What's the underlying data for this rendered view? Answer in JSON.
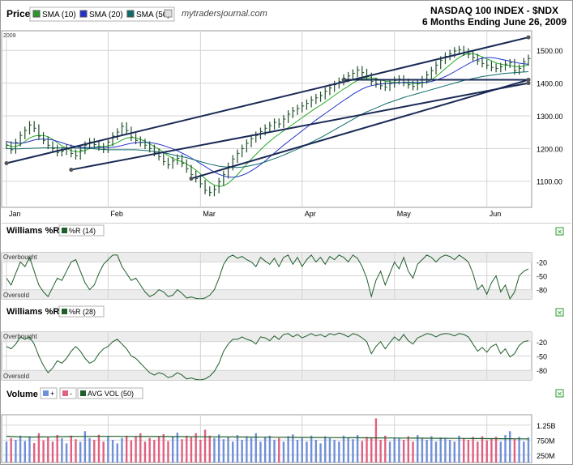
{
  "header": {
    "panel_label": "Price",
    "legend": [
      {
        "label": "SMA (10)",
        "color": "#22aa22"
      },
      {
        "label": "SMA (20)",
        "color": "#2233cc"
      },
      {
        "label": "SMA (50)",
        "color": "#0f6b6b"
      }
    ],
    "watermark": "mytradersjournal.com",
    "title_line1": "NASDAQ 100 INDEX - $NDX",
    "title_line2": "6 Months Ending June 26, 2009",
    "year_label": "2009"
  },
  "colors": {
    "bar": "#1f4f2a",
    "trendline": "#1a2a55",
    "grid": "#d4d4d4",
    "williams_line": "#1f5f2a",
    "volume_up": "#6f8fd8",
    "volume_down": "#e06080",
    "avg_vol": "#1f5f2a",
    "icon_green": "#2a9a2a"
  },
  "chart_data": [
    {
      "type": "line",
      "panel": "price",
      "x_labels": [
        "Jan",
        "Feb",
        "Mar",
        "Apr",
        "May",
        "Jun"
      ],
      "y_ticks": [
        "1500.00",
        "1400.00",
        "1300.00",
        "1200.00",
        "1100.00"
      ],
      "ylim": [
        1020,
        1560
      ],
      "close": [
        1210,
        1196,
        1218,
        1240,
        1255,
        1272,
        1262,
        1238,
        1225,
        1210,
        1200,
        1188,
        1192,
        1200,
        1185,
        1178,
        1195,
        1210,
        1220,
        1212,
        1205,
        1198,
        1220,
        1238,
        1250,
        1268,
        1255,
        1235,
        1225,
        1218,
        1210,
        1200,
        1188,
        1175,
        1160,
        1150,
        1162,
        1170,
        1155,
        1138,
        1120,
        1108,
        1092,
        1072,
        1066,
        1075,
        1098,
        1120,
        1145,
        1168,
        1185,
        1200,
        1216,
        1230,
        1240,
        1252,
        1262,
        1270,
        1280,
        1275,
        1290,
        1305,
        1315,
        1322,
        1330,
        1338,
        1348,
        1355,
        1362,
        1375,
        1385,
        1395,
        1405,
        1415,
        1422,
        1430,
        1440,
        1432,
        1420,
        1405,
        1398,
        1392,
        1388,
        1398,
        1408,
        1412,
        1402,
        1395,
        1390,
        1398,
        1410,
        1425,
        1438,
        1455,
        1470,
        1482,
        1490,
        1498,
        1502,
        1495,
        1488,
        1478,
        1468,
        1460,
        1455,
        1448,
        1445,
        1450,
        1458,
        1462,
        1438,
        1445,
        1465,
        1475
      ],
      "series": [
        {
          "name": "SMA (10)",
          "values": [
            1212,
            1206,
            1206,
            1212,
            1222,
            1232,
            1238,
            1240,
            1240,
            1236,
            1228,
            1218,
            1208,
            1200,
            1194,
            1190,
            1190,
            1194,
            1200,
            1204,
            1206,
            1206,
            1208,
            1212,
            1218,
            1226,
            1232,
            1234,
            1232,
            1228,
            1222,
            1214,
            1206,
            1198,
            1188,
            1178,
            1170,
            1164,
            1160,
            1152,
            1144,
            1134,
            1122,
            1108,
            1096,
            1088,
            1084,
            1086,
            1094,
            1106,
            1120,
            1136,
            1152,
            1168,
            1182,
            1196,
            1210,
            1222,
            1234,
            1244,
            1254,
            1264,
            1274,
            1284,
            1294,
            1304,
            1314,
            1324,
            1332,
            1342,
            1352,
            1362,
            1372,
            1382,
            1390,
            1400,
            1408,
            1414,
            1416,
            1416,
            1414,
            1410,
            1406,
            1404,
            1402,
            1402,
            1401,
            1400,
            1399,
            1398,
            1400,
            1404,
            1410,
            1420,
            1432,
            1444,
            1456,
            1468,
            1478,
            1486,
            1490,
            1490,
            1486,
            1480,
            1474,
            1468,
            1462,
            1458,
            1455,
            1454,
            1451,
            1450,
            1452,
            1457
          ]
        },
        {
          "name": "SMA (20)",
          "values": [
            1222,
            1218,
            1216,
            1216,
            1218,
            1222,
            1226,
            1228,
            1229,
            1228,
            1226,
            1222,
            1218,
            1213,
            1209,
            1206,
            1204,
            1203,
            1203,
            1203,
            1203,
            1203,
            1203,
            1204,
            1206,
            1209,
            1213,
            1216,
            1218,
            1219,
            1219,
            1218,
            1216,
            1213,
            1209,
            1204,
            1199,
            1193,
            1186,
            1179,
            1171,
            1163,
            1154,
            1145,
            1136,
            1128,
            1121,
            1116,
            1113,
            1112,
            1114,
            1118,
            1124,
            1132,
            1141,
            1151,
            1162,
            1174,
            1186,
            1198,
            1210,
            1221,
            1232,
            1243,
            1254,
            1265,
            1276,
            1287,
            1297,
            1307,
            1317,
            1327,
            1337,
            1347,
            1356,
            1366,
            1374,
            1382,
            1388,
            1392,
            1395,
            1397,
            1398,
            1399,
            1400,
            1401,
            1402,
            1402,
            1402,
            1402,
            1402,
            1403,
            1405,
            1409,
            1414,
            1420,
            1427,
            1435,
            1443,
            1451,
            1459,
            1466,
            1472,
            1476,
            1478,
            1478,
            1476,
            1473,
            1470,
            1467,
            1464,
            1461,
            1459,
            1458
          ]
        },
        {
          "name": "SMA (50)",
          "values": [
            1200,
            1199,
            1199,
            1199,
            1200,
            1200,
            1201,
            1201,
            1202,
            1202,
            1202,
            1202,
            1202,
            1202,
            1202,
            1201,
            1201,
            1200,
            1200,
            1199,
            1198,
            1197,
            1196,
            1196,
            1196,
            1196,
            1196,
            1196,
            1196,
            1195,
            1194,
            1193,
            1191,
            1189,
            1187,
            1184,
            1181,
            1178,
            1175,
            1172,
            1168,
            1164,
            1160,
            1156,
            1152,
            1149,
            1146,
            1144,
            1143,
            1142,
            1142,
            1143,
            1145,
            1148,
            1151,
            1155,
            1159,
            1164,
            1169,
            1174,
            1180,
            1186,
            1192,
            1198,
            1205,
            1212,
            1219,
            1226,
            1233,
            1241,
            1249,
            1257,
            1265,
            1273,
            1281,
            1289,
            1297,
            1305,
            1312,
            1318,
            1324,
            1330,
            1336,
            1341,
            1346,
            1351,
            1356,
            1360,
            1364,
            1368,
            1372,
            1376,
            1380,
            1384,
            1388,
            1392,
            1396,
            1400,
            1404,
            1408,
            1411,
            1414,
            1417,
            1420,
            1422,
            1424,
            1426,
            1428,
            1430,
            1431,
            1432,
            1433,
            1434,
            1435
          ]
        }
      ],
      "trendlines": [
        {
          "from": [
            0,
            1155
          ],
          "to": [
            113,
            1540
          ]
        },
        {
          "from": [
            14,
            1135
          ],
          "to": [
            113,
            1400
          ]
        },
        {
          "from": [
            40,
            1108
          ],
          "to": [
            113,
            1410
          ]
        },
        {
          "from": [
            73,
            1410
          ],
          "to": [
            113,
            1410
          ]
        }
      ]
    },
    {
      "type": "line",
      "panel": "williams_r_14",
      "label": "Williams %R",
      "series_name": "%R (14)",
      "ylim": [
        -100,
        0
      ],
      "y_ticks": [
        "-20",
        "-50",
        "-80"
      ],
      "zone_labels": [
        "Overbought",
        "Oversold"
      ],
      "values": [
        -55,
        -70,
        -45,
        -20,
        -30,
        -10,
        -40,
        -70,
        -85,
        -95,
        -75,
        -55,
        -60,
        -40,
        -20,
        -15,
        -40,
        -65,
        -80,
        -70,
        -45,
        -25,
        -15,
        -5,
        -5,
        -30,
        -45,
        -60,
        -55,
        -70,
        -85,
        -95,
        -90,
        -80,
        -85,
        -95,
        -92,
        -80,
        -88,
        -98,
        -96,
        -99,
        -100,
        -98,
        -92,
        -80,
        -55,
        -25,
        -10,
        -5,
        -12,
        -8,
        -15,
        -20,
        -30,
        -10,
        -18,
        -25,
        -12,
        -30,
        -10,
        -5,
        -25,
        -10,
        -30,
        -15,
        -5,
        -20,
        -10,
        -25,
        -8,
        -15,
        -5,
        -10,
        -20,
        -5,
        -12,
        -30,
        -55,
        -95,
        -60,
        -40,
        -70,
        -45,
        -20,
        -35,
        -10,
        -40,
        -55,
        -25,
        -15,
        -5,
        -10,
        -20,
        -10,
        -5,
        -8,
        -15,
        -5,
        -12,
        -20,
        -45,
        -80,
        -70,
        -90,
        -65,
        -50,
        -85,
        -70,
        -100,
        -85,
        -50,
        -40,
        -35
      ]
    },
    {
      "type": "line",
      "panel": "williams_r_28",
      "label": "Williams %R",
      "series_name": "%R (28)",
      "ylim": [
        -100,
        0
      ],
      "y_ticks": [
        "-20",
        "-50",
        "-80"
      ],
      "zone_labels": [
        "Overbought",
        "Oversold"
      ],
      "values": [
        -30,
        -35,
        -25,
        -10,
        -15,
        -10,
        -25,
        -50,
        -70,
        -85,
        -75,
        -60,
        -65,
        -55,
        -40,
        -30,
        -40,
        -55,
        -65,
        -60,
        -45,
        -35,
        -30,
        -20,
        -15,
        -25,
        -35,
        -50,
        -55,
        -65,
        -75,
        -85,
        -90,
        -85,
        -88,
        -95,
        -92,
        -85,
        -90,
        -98,
        -96,
        -99,
        -100,
        -98,
        -92,
        -82,
        -65,
        -40,
        -25,
        -15,
        -15,
        -10,
        -15,
        -18,
        -25,
        -10,
        -12,
        -18,
        -8,
        -15,
        -5,
        -3,
        -10,
        -5,
        -12,
        -8,
        -3,
        -8,
        -5,
        -10,
        -3,
        -6,
        -2,
        -5,
        -10,
        -3,
        -6,
        -12,
        -20,
        -45,
        -30,
        -20,
        -35,
        -22,
        -10,
        -18,
        -5,
        -18,
        -25,
        -12,
        -8,
        -3,
        -5,
        -10,
        -5,
        -3,
        -4,
        -8,
        -3,
        -5,
        -10,
        -25,
        -40,
        -32,
        -42,
        -30,
        -25,
        -45,
        -35,
        -52,
        -45,
        -28,
        -20,
        -18
      ]
    },
    {
      "type": "bar",
      "panel": "volume",
      "label": "Volume",
      "legend": [
        "+",
        "-",
        "AVG VOL (50)"
      ],
      "y_ticks": [
        "1.25B",
        "750M",
        "250M"
      ],
      "ylim": [
        0,
        1600
      ],
      "unit": "M",
      "values": [
        700,
        820,
        760,
        900,
        720,
        880,
        650,
        980,
        740,
        860,
        700,
        920,
        810,
        640,
        900,
        780,
        690,
        1050,
        820,
        760,
        930,
        700,
        880,
        760,
        640,
        820,
        900,
        740,
        860,
        980,
        700,
        820,
        760,
        880,
        950,
        720,
        860,
        1000,
        780,
        900,
        840,
        980,
        760,
        1100,
        900,
        820,
        940,
        780,
        860,
        700,
        920,
        760,
        880,
        820,
        980,
        700,
        840,
        900,
        760,
        820,
        700,
        880,
        940,
        760,
        820,
        700,
        900,
        760,
        640,
        880,
        820,
        760,
        700,
        900,
        840,
        780,
        920,
        720,
        860,
        820,
        1480,
        760,
        900,
        700,
        840,
        820,
        760,
        880,
        700,
        920,
        800,
        760,
        880,
        700,
        840,
        820,
        760,
        700,
        900,
        820,
        760,
        860,
        700,
        880,
        740,
        800,
        860,
        700,
        920,
        1050,
        780,
        860,
        700,
        840
      ],
      "avg_vol": [
        880,
        870,
        865,
        860,
        858,
        855,
        855,
        856,
        858,
        860,
        862,
        864,
        866,
        868,
        870,
        872,
        873,
        874,
        875,
        876,
        876,
        876,
        876,
        876,
        875,
        874,
        873,
        872,
        871,
        870,
        870,
        870,
        870,
        870,
        870,
        870,
        869,
        868,
        867,
        866,
        865,
        864,
        863,
        862,
        861,
        860,
        859,
        858,
        857,
        856,
        855,
        854,
        853,
        852,
        851,
        850,
        849,
        848,
        847,
        846,
        845,
        844,
        843,
        842,
        841,
        840,
        839,
        838,
        837,
        836,
        835,
        834,
        833,
        832,
        831,
        830,
        829,
        828,
        827,
        826,
        825,
        824,
        823,
        822,
        821,
        820,
        819,
        818,
        817,
        816,
        815,
        814,
        813,
        812,
        811,
        810,
        809,
        808,
        807,
        806,
        805,
        804,
        803,
        802,
        801,
        800,
        799,
        798,
        797,
        796,
        795,
        794,
        793,
        792
      ]
    }
  ]
}
